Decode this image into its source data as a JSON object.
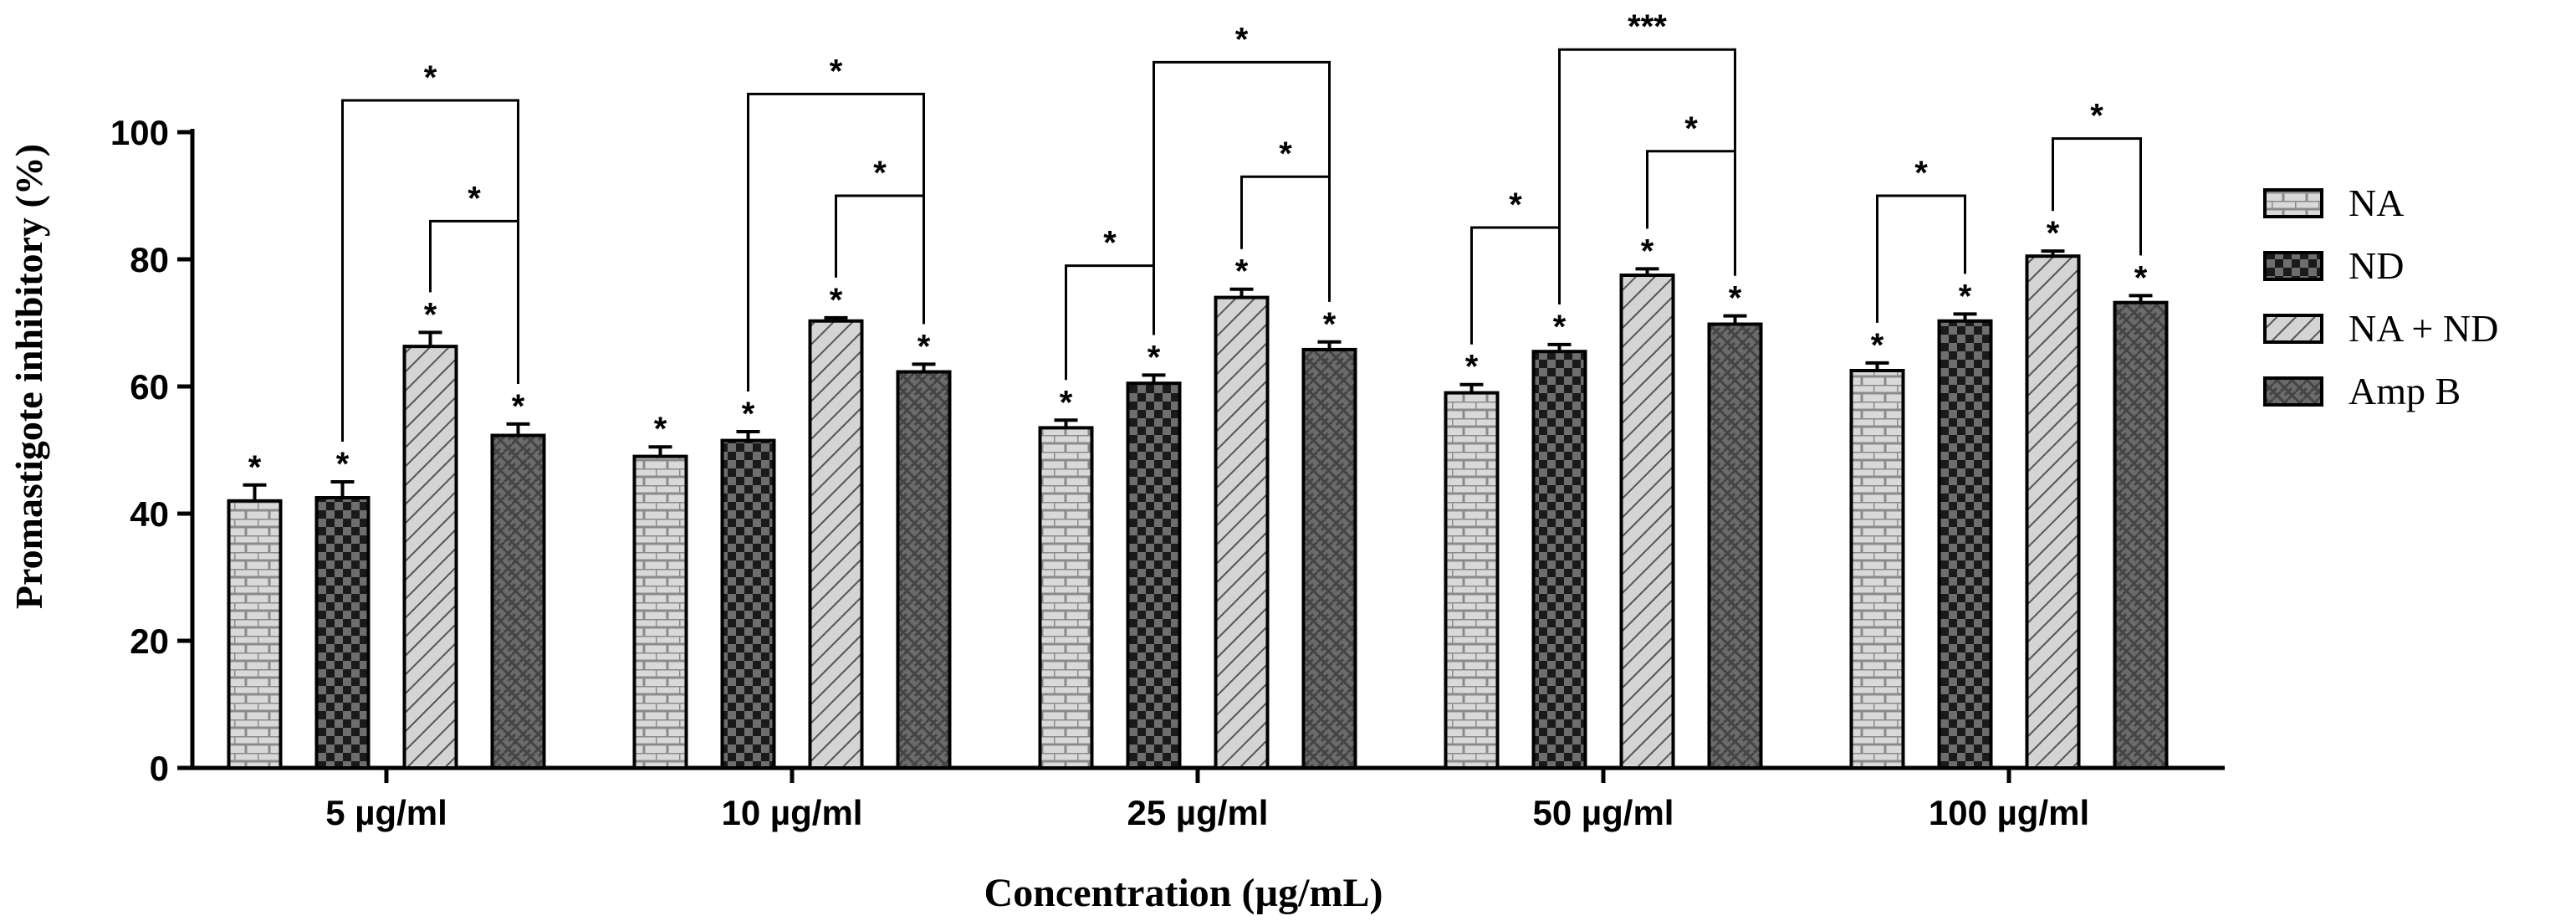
{
  "chart_data": {
    "type": "bar",
    "title": "",
    "xlabel": "Concentration (µg/mL)",
    "ylabel": "Promastigote inhibitory (%)",
    "ylim": [
      0,
      100
    ],
    "yticks": [
      "0",
      "20",
      "40",
      "60",
      "80",
      "100"
    ],
    "categories": [
      "5 µg/ml",
      "10 µg/ml",
      "25 µg/ml",
      "50 µg/ml",
      "100 µg/ml"
    ],
    "series": [
      {
        "name": "NA",
        "values": [
          42,
          49,
          53.5,
          59,
          62.5
        ],
        "errors": [
          2.5,
          1.5,
          1.2,
          1.3,
          1.2
        ],
        "labels": [
          "*",
          "*",
          "*",
          "*",
          "*"
        ]
      },
      {
        "name": "ND",
        "values": [
          42.5,
          51.5,
          60.5,
          65.5,
          70.3
        ],
        "errors": [
          2.5,
          1.4,
          1.3,
          1.1,
          1.1
        ],
        "labels": [
          "*",
          "*",
          "*",
          "*",
          "*"
        ]
      },
      {
        "name": "NA + ND",
        "values": [
          66.3,
          70.3,
          74,
          77.5,
          80.5
        ],
        "errors": [
          2.2,
          0.5,
          1.3,
          1.0,
          0.8
        ],
        "labels": [
          "*",
          "*",
          "*",
          "*",
          "*"
        ]
      },
      {
        "name": "Amp B",
        "values": [
          52.3,
          62.3,
          65.8,
          69.8,
          73.2
        ],
        "errors": [
          1.8,
          1.2,
          1.2,
          1.3,
          1.1
        ],
        "labels": [
          "*",
          "*",
          "*",
          "*",
          "*"
        ]
      }
    ],
    "comparisons": [
      {
        "category": 0,
        "from": 1,
        "to": 3,
        "level": 105,
        "label": "*"
      },
      {
        "category": 0,
        "from": 2,
        "to": 3,
        "level": 86,
        "label": "*"
      },
      {
        "category": 1,
        "from": 1,
        "to": 3,
        "level": 106,
        "label": "*"
      },
      {
        "category": 1,
        "from": 2,
        "to": 3,
        "level": 90,
        "label": "*"
      },
      {
        "category": 2,
        "from": 0,
        "to": 1,
        "level": 79,
        "label": "*"
      },
      {
        "category": 2,
        "from": 1,
        "to": 3,
        "level": 111,
        "label": "*"
      },
      {
        "category": 2,
        "from": 2,
        "to": 3,
        "level": 93,
        "label": "*"
      },
      {
        "category": 3,
        "from": 0,
        "to": 1,
        "level": 85,
        "label": "*"
      },
      {
        "category": 3,
        "from": 1,
        "to": 3,
        "level": 113,
        "label": "***"
      },
      {
        "category": 3,
        "from": 2,
        "to": 3,
        "level": 97,
        "label": "*"
      },
      {
        "category": 4,
        "from": 0,
        "to": 1,
        "level": 90,
        "label": "*"
      },
      {
        "category": 4,
        "from": 2,
        "to": 3,
        "level": 99,
        "label": "*"
      }
    ],
    "legend": {
      "position": "right",
      "entries": [
        "NA",
        "ND",
        "NA + ND",
        "Amp B"
      ]
    },
    "grid": false
  }
}
